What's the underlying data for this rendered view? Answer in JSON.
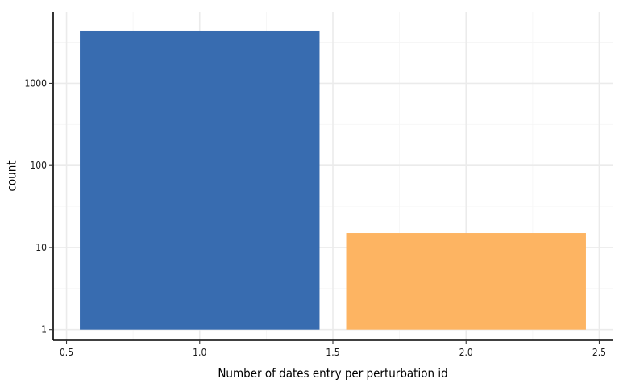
{
  "chart_data": {
    "type": "bar",
    "xlabel": "Number of dates entry per perturbation id",
    "ylabel": "count",
    "x_scale": "linear",
    "y_scale": "log10",
    "xlim": [
      0.45,
      2.55
    ],
    "ylim": [
      0.74,
      7400
    ],
    "x_ticks": [
      {
        "value": 0.5,
        "label": "0.5"
      },
      {
        "value": 1.0,
        "label": "1.0"
      },
      {
        "value": 1.5,
        "label": "1.5"
      },
      {
        "value": 2.0,
        "label": "2.0"
      },
      {
        "value": 2.5,
        "label": "2.5"
      }
    ],
    "y_ticks": [
      {
        "value": 1,
        "label": "1"
      },
      {
        "value": 10,
        "label": "10"
      },
      {
        "value": 100,
        "label": "100"
      },
      {
        "value": 1000,
        "label": "1000"
      }
    ],
    "bar_width": 0.9,
    "grid": true,
    "legend": "none",
    "bars": [
      {
        "x": 1,
        "value": 4400,
        "color": "#386cb0"
      },
      {
        "x": 2,
        "value": 15,
        "color": "#fdb462"
      }
    ]
  }
}
